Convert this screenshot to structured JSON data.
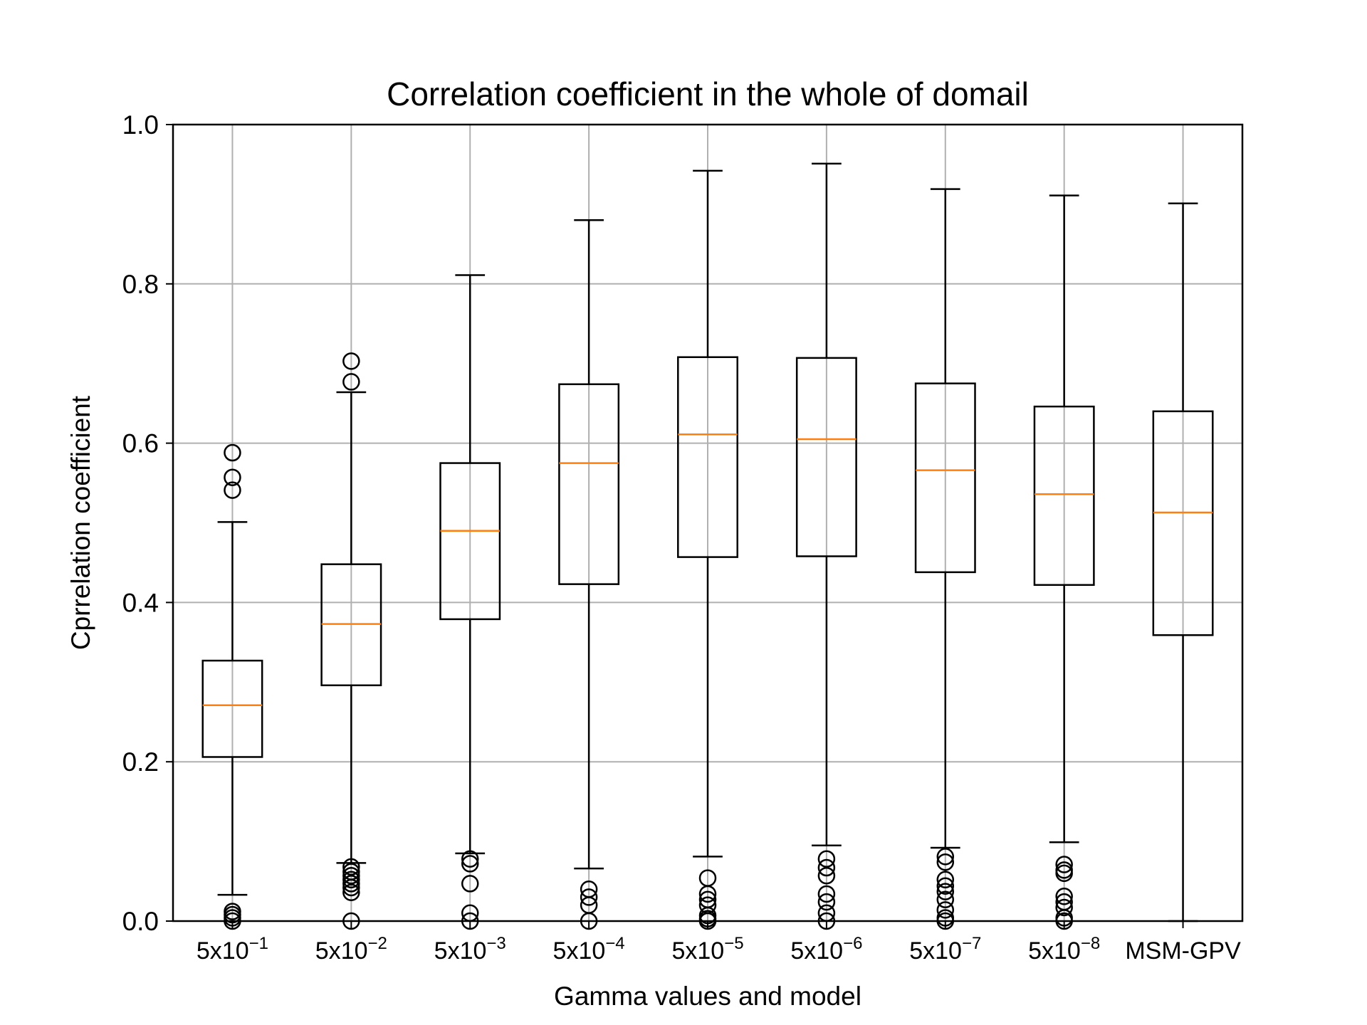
{
  "chart_data": {
    "type": "box",
    "title": "Correlation coefficient in the whole of domail",
    "xlabel": "Gamma values and model",
    "ylabel": "Cprrelation coefficient",
    "ylim": [
      0.0,
      1.0
    ],
    "yticks": [
      "0.0",
      "0.2",
      "0.4",
      "0.6",
      "0.8",
      "1.0"
    ],
    "grid": true,
    "categories": [
      {
        "base": "5x10",
        "exp": "−1"
      },
      {
        "base": "5x10",
        "exp": "−2"
      },
      {
        "base": "5x10",
        "exp": "−3"
      },
      {
        "base": "5x10",
        "exp": "−4"
      },
      {
        "base": "5x10",
        "exp": "−5"
      },
      {
        "base": "5x10",
        "exp": "−6"
      },
      {
        "base": "5x10",
        "exp": "−7"
      },
      {
        "base": "5x10",
        "exp": "−8"
      },
      {
        "base": "MSM-GPV",
        "exp": ""
      }
    ],
    "boxes": [
      {
        "whisker_low": 0.033,
        "q1": 0.206,
        "median": 0.271,
        "q3": 0.327,
        "whisker_high": 0.501,
        "outliers": [
          0.588,
          0.557,
          0.541,
          0.012,
          0.008,
          0.004,
          0.0
        ]
      },
      {
        "whisker_low": 0.073,
        "q1": 0.296,
        "median": 0.373,
        "q3": 0.448,
        "whisker_high": 0.664,
        "outliers": [
          0.703,
          0.677,
          0.068,
          0.062,
          0.057,
          0.052,
          0.047,
          0.042,
          0.036,
          0.0
        ]
      },
      {
        "whisker_low": 0.085,
        "q1": 0.379,
        "median": 0.49,
        "q3": 0.575,
        "whisker_high": 0.811,
        "outliers": [
          0.078,
          0.072,
          0.047,
          0.01,
          0.0
        ]
      },
      {
        "whisker_low": 0.066,
        "q1": 0.423,
        "median": 0.575,
        "q3": 0.674,
        "whisker_high": 0.88,
        "outliers": [
          0.04,
          0.03,
          0.02,
          0.0
        ]
      },
      {
        "whisker_low": 0.081,
        "q1": 0.457,
        "median": 0.611,
        "q3": 0.708,
        "whisker_high": 0.942,
        "outliers": [
          0.054,
          0.034,
          0.027,
          0.02,
          0.007,
          0.003,
          0.0
        ]
      },
      {
        "whisker_low": 0.095,
        "q1": 0.458,
        "median": 0.605,
        "q3": 0.707,
        "whisker_high": 0.951,
        "outliers": [
          0.078,
          0.067,
          0.057,
          0.034,
          0.024,
          0.01,
          0.0
        ]
      },
      {
        "whisker_low": 0.092,
        "q1": 0.438,
        "median": 0.566,
        "q3": 0.675,
        "whisker_high": 0.919,
        "outliers": [
          0.081,
          0.074,
          0.052,
          0.044,
          0.037,
          0.027,
          0.014,
          0.004,
          0.0
        ]
      },
      {
        "whisker_low": 0.099,
        "q1": 0.422,
        "median": 0.536,
        "q3": 0.646,
        "whisker_high": 0.911,
        "outliers": [
          0.071,
          0.064,
          0.06,
          0.031,
          0.024,
          0.017,
          0.004,
          0.0
        ]
      },
      {
        "whisker_low": 0.0,
        "q1": 0.359,
        "median": 0.513,
        "q3": 0.64,
        "whisker_high": 0.901,
        "outliers": []
      }
    ],
    "colors": {
      "box": "#000000",
      "median": "#ff7f0e",
      "grid": "#b0b0b0"
    }
  }
}
